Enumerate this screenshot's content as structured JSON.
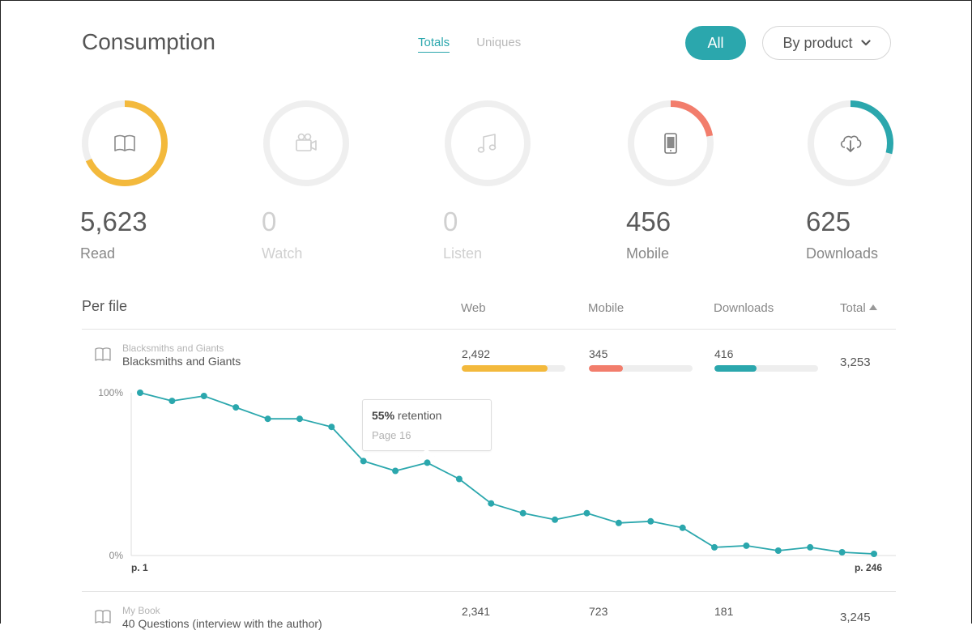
{
  "header": {
    "title": "Consumption",
    "tabs": [
      {
        "label": "Totals",
        "active": true
      },
      {
        "label": "Uniques",
        "active": false
      }
    ],
    "all_button": "All",
    "product_button": "By product"
  },
  "colors": {
    "read": "#f3b93c",
    "mobile": "#f27d6c",
    "downloads": "#2ba7ad",
    "muted": "#efefef"
  },
  "stats": [
    {
      "value": "5,623",
      "label": "Read",
      "icon": "book-icon",
      "fraction": 0.68,
      "color": "#f3b93c"
    },
    {
      "value": "0",
      "label": "Watch",
      "icon": "video-camera-icon",
      "fraction": 0,
      "color": "#efefef"
    },
    {
      "value": "0",
      "label": "Listen",
      "icon": "music-note-icon",
      "fraction": 0,
      "color": "#efefef"
    },
    {
      "value": "456",
      "label": "Mobile",
      "icon": "mobile-phone-icon",
      "fraction": 0.22,
      "color": "#f27d6c"
    },
    {
      "value": "625",
      "label": "Downloads",
      "icon": "cloud-download-icon",
      "fraction": 0.29,
      "color": "#2ba7ad"
    }
  ],
  "table": {
    "heading": "Per file",
    "columns": [
      "Web",
      "Mobile",
      "Downloads",
      "Total"
    ],
    "rows": [
      {
        "subtitle": "Blacksmiths and Giants",
        "title": "Blacksmiths and Giants",
        "web": "2,492",
        "mobile": "345",
        "downloads": "416",
        "total": "3,253",
        "web_pct": 0.83,
        "mobile_pct": 0.33,
        "downloads_pct": 0.41
      },
      {
        "subtitle": "My Book",
        "title": "40 Questions (interview with the author)",
        "web": "2,341",
        "mobile": "723",
        "downloads": "181",
        "total": "3,245"
      }
    ]
  },
  "tooltip": {
    "percent": "55%",
    "text": "retention",
    "page": "Page 16"
  },
  "chart_data": {
    "type": "line",
    "y_labels": [
      "100%",
      "0%"
    ],
    "x_labels": [
      "p. 1",
      "p. 246"
    ],
    "ylim": [
      0,
      100
    ],
    "values": [
      100,
      95,
      98,
      91,
      84,
      84,
      79,
      58,
      52,
      57,
      47,
      32,
      26,
      22,
      26,
      20,
      21,
      17,
      5,
      6,
      3,
      5,
      2,
      1
    ]
  }
}
